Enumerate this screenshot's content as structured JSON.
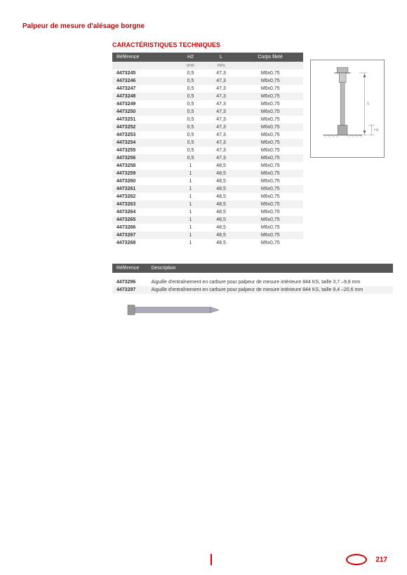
{
  "title": "Palpeur de mesure d'alésage borgne",
  "section_title": "CARACTÉRISTIQUES TECHNIQUES",
  "main_table": {
    "headers": [
      "Référence",
      "H2",
      "L",
      "Corps fileté"
    ],
    "units": [
      "",
      "mm",
      "mm",
      ""
    ],
    "rows": [
      [
        "4473245",
        "0,5",
        "47,3",
        "M6x0,75"
      ],
      [
        "4473246",
        "0,5",
        "47,3",
        "M6x0,75"
      ],
      [
        "4473247",
        "0,5",
        "47,3",
        "M6x0,75"
      ],
      [
        "4473248",
        "0,5",
        "47,3",
        "M6x0,75"
      ],
      [
        "4473249",
        "0,5",
        "47,3",
        "M6x0,75"
      ],
      [
        "4473250",
        "0,5",
        "47,3",
        "M6x0,75"
      ],
      [
        "4473251",
        "0,5",
        "47,3",
        "M6x0,75"
      ],
      [
        "4473252",
        "0,5",
        "47,3",
        "M6x0,75"
      ],
      [
        "4473253",
        "0,5",
        "47,3",
        "M6x0,75"
      ],
      [
        "4473254",
        "0,5",
        "47,3",
        "M6x0,75"
      ],
      [
        "4473255",
        "0,5",
        "47,3",
        "M6x0,75"
      ],
      [
        "4473256",
        "0,5",
        "47,3",
        "M6x0,75"
      ],
      [
        "4473258",
        "1",
        "48,5",
        "M6x0,75"
      ],
      [
        "4473259",
        "1",
        "48,5",
        "M6x0,75"
      ],
      [
        "4473260",
        "1",
        "48,5",
        "M6x0,75"
      ],
      [
        "4473261",
        "1",
        "48,5",
        "M6x0,75"
      ],
      [
        "4473262",
        "1",
        "48,5",
        "M6x0,75"
      ],
      [
        "4473263",
        "1",
        "48,5",
        "M6x0,75"
      ],
      [
        "4473264",
        "1",
        "48,5",
        "M6x0,75"
      ],
      [
        "4473265",
        "1",
        "48,5",
        "M6x0,75"
      ],
      [
        "4473266",
        "1",
        "48,5",
        "M6x0,75"
      ],
      [
        "4473267",
        "1",
        "48,5",
        "M6x0,75"
      ],
      [
        "4473268",
        "1",
        "48,5",
        "M6x0,75"
      ]
    ]
  },
  "second_table": {
    "headers": [
      "Référence",
      "Description"
    ],
    "rows": [
      [
        "4473296",
        "Aiguille d'entraînement en carbure pour palpeur de mesure intérieure 844 KS, taille 3,7 –9,8 mm"
      ],
      [
        "4473297",
        "Aiguille d'entraînement en carbure pour palpeur de mesure intérieure 844 KS, taille 9,4 –20,6 mm"
      ]
    ]
  },
  "page_number": "217",
  "colors": {
    "accent": "#c00",
    "header_bg": "#555",
    "row_alt": "#f2f2f2"
  }
}
